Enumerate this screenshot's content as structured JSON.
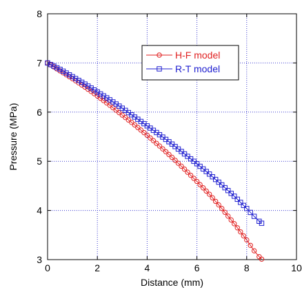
{
  "chart_data": {
    "type": "line",
    "title": "",
    "xlabel": "Distance (mm)",
    "ylabel": "Pressure (MPa)",
    "xlim": [
      0,
      10
    ],
    "ylim": [
      3,
      8
    ],
    "xticks": [
      0,
      2,
      4,
      6,
      8,
      10
    ],
    "yticks": [
      3,
      4,
      5,
      6,
      7,
      8
    ],
    "grid": true,
    "legend_position": "top-right",
    "series": [
      {
        "name": "H-F model",
        "color": "#e02020",
        "marker": "circle",
        "x": [
          0.0,
          0.5,
          1.0,
          1.5,
          2.0,
          2.5,
          3.0,
          3.5,
          4.0,
          4.5,
          5.0,
          5.5,
          6.0,
          6.5,
          7.0,
          7.5,
          8.0,
          8.3,
          8.5,
          8.6
        ],
        "y": [
          7.0,
          6.84,
          6.68,
          6.51,
          6.33,
          6.14,
          5.94,
          5.74,
          5.53,
          5.31,
          5.08,
          4.84,
          4.59,
          4.33,
          4.04,
          3.73,
          3.4,
          3.18,
          3.06,
          3.01
        ]
      },
      {
        "name": "R-T model",
        "color": "#2020d0",
        "marker": "square",
        "x": [
          0.0,
          0.5,
          1.0,
          1.5,
          2.0,
          2.5,
          3.0,
          3.5,
          4.0,
          4.5,
          5.0,
          5.5,
          6.0,
          6.5,
          7.0,
          7.5,
          8.0,
          8.3,
          8.5,
          8.6
        ],
        "y": [
          7.0,
          6.87,
          6.72,
          6.57,
          6.41,
          6.25,
          6.08,
          5.9,
          5.72,
          5.54,
          5.35,
          5.15,
          4.95,
          4.74,
          4.52,
          4.29,
          4.04,
          3.88,
          3.78,
          3.74
        ]
      }
    ]
  }
}
